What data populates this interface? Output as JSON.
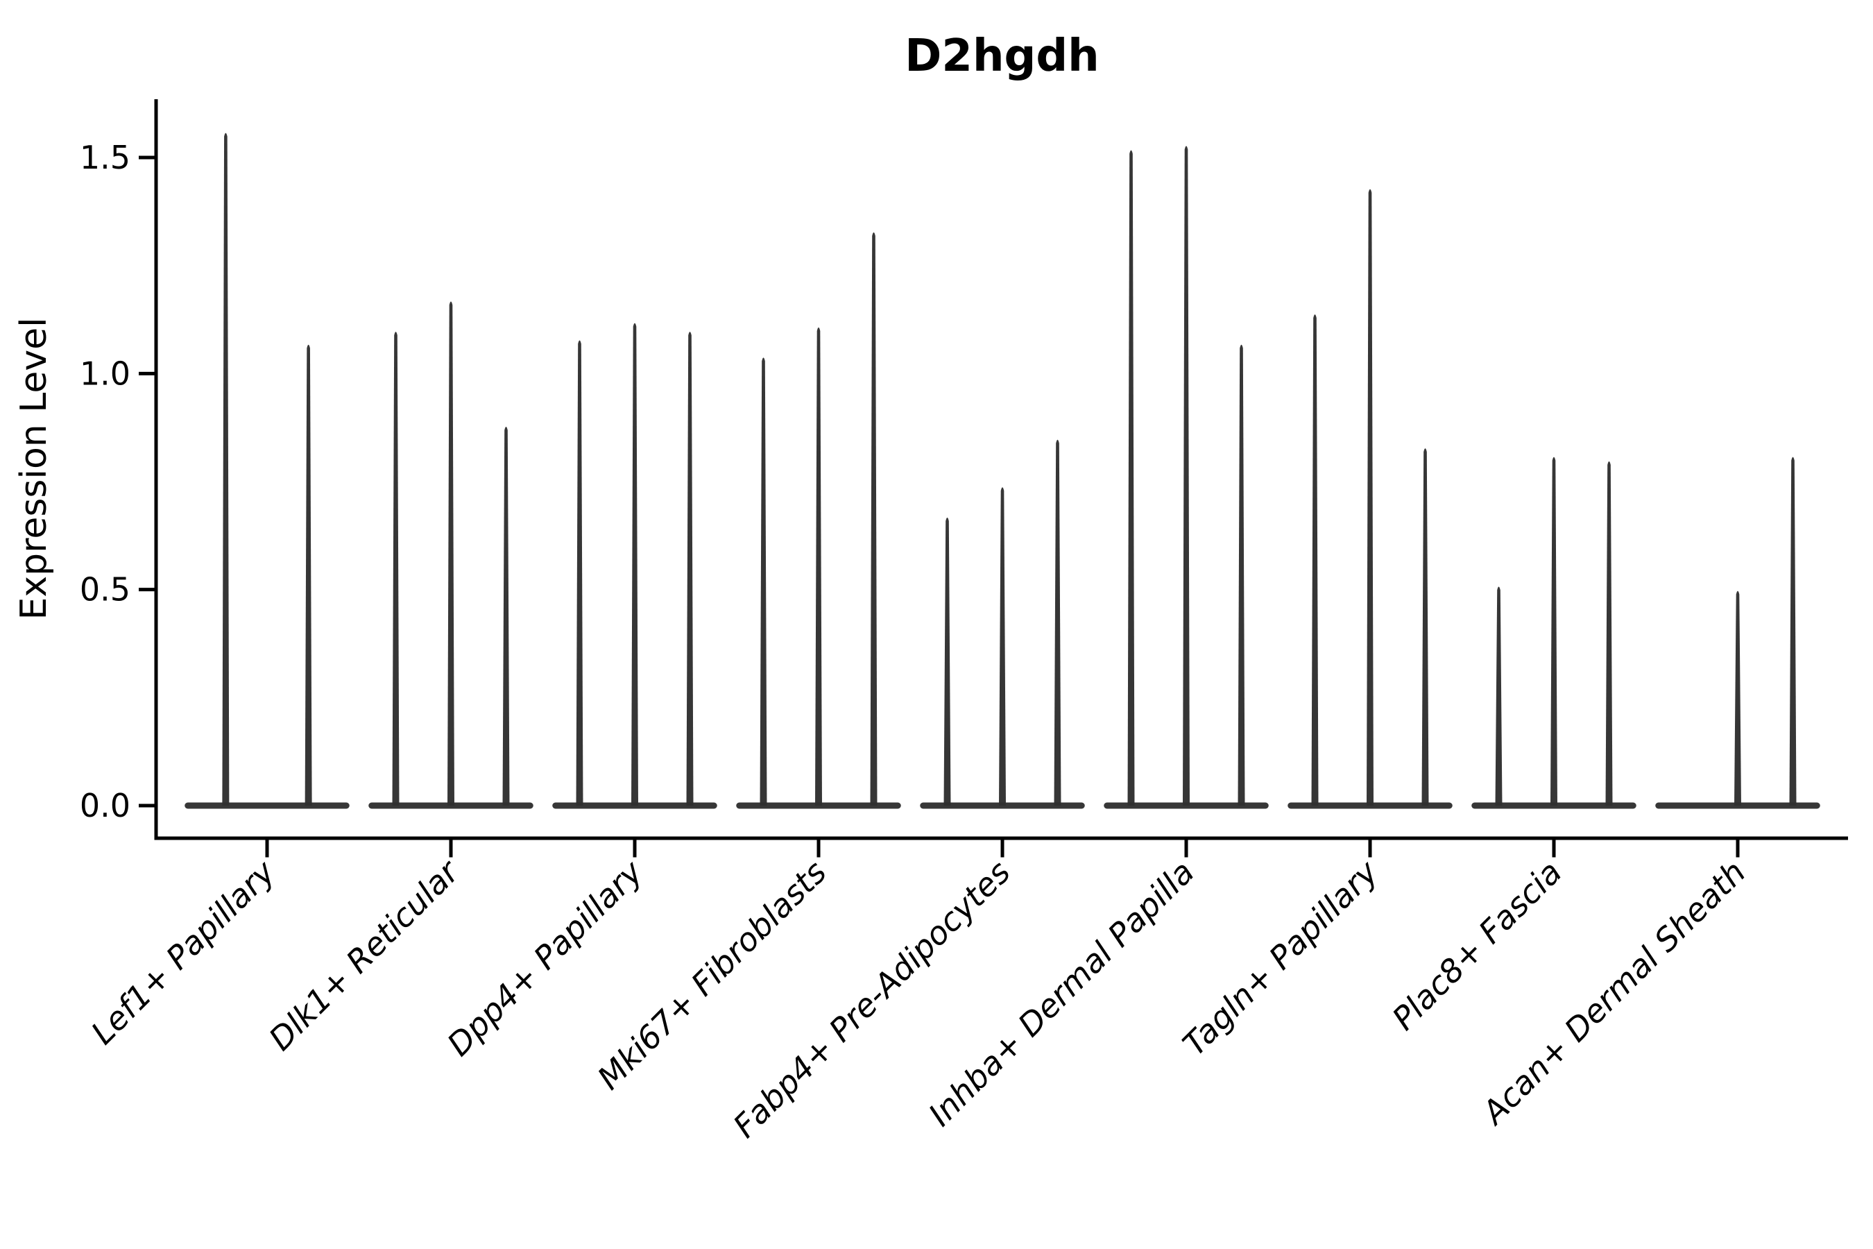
{
  "figure": {
    "title": "D2hgdh"
  },
  "chart_data": {
    "type": "violin",
    "title": "D2hgdh",
    "xlabel": "",
    "ylabel": "Expression Level",
    "ytick_labels": [
      "0.0",
      "0.5",
      "1.0",
      "1.5"
    ],
    "ytick_values": [
      0.0,
      0.5,
      1.0,
      1.5
    ],
    "ylim": [
      -0.0755,
      1.625
    ],
    "grid": "off",
    "legend": "none",
    "categories": [
      "Lef1+ Papillary",
      "Dlk1+ Reticular",
      "Dpp4+ Papillary",
      "Mki67+ Fibroblasts",
      "Fabp4+ Pre-Adipocytes",
      "Inhba+ Dermal Papilla",
      "Tagln+ Papillary",
      "Plac8+ Fascia",
      "Acan+ Dermal Sheath"
    ],
    "groups": [
      {
        "category": "Lef1+ Papillary",
        "violin_maxima": [
          1.56,
          1.07
        ]
      },
      {
        "category": "Dlk1+ Reticular",
        "violin_maxima": [
          1.1,
          1.17,
          0.88
        ]
      },
      {
        "category": "Dpp4+ Papillary",
        "violin_maxima": [
          1.08,
          1.12,
          1.1
        ]
      },
      {
        "category": "Mki67+ Fibroblasts",
        "violin_maxima": [
          1.04,
          1.11,
          1.33
        ]
      },
      {
        "category": "Fabp4+ Pre-Adipocytes",
        "violin_maxima": [
          0.67,
          0.74,
          0.85
        ]
      },
      {
        "category": "Inhba+ Dermal Papilla",
        "violin_maxima": [
          1.52,
          1.53,
          1.07
        ]
      },
      {
        "category": "Tagln+ Papillary",
        "violin_maxima": [
          1.14,
          1.43,
          0.83
        ]
      },
      {
        "category": "Plac8+ Fascia",
        "violin_maxima": [
          0.51,
          0.81,
          0.8
        ]
      },
      {
        "category": "Acan+ Dermal Sheath",
        "violin_maxima": [
          0.0,
          0.5,
          0.81
        ]
      }
    ],
    "style": {
      "violin_color": "#2f2f2f",
      "axis_color": "#000000",
      "background_color": "#ffffff"
    }
  }
}
